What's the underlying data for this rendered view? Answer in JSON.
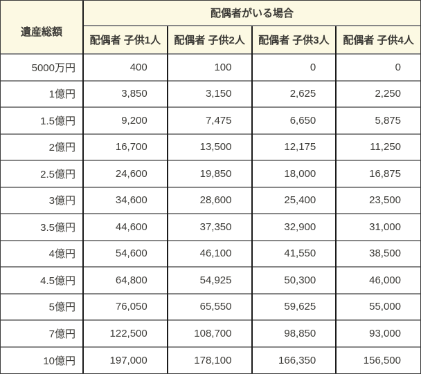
{
  "chart_data": {
    "type": "table",
    "corner_header": "遺産総額",
    "group_header": "配偶者がいる場合",
    "column_headers": [
      "配偶者 子供1人",
      "配偶者 子供2人",
      "配偶者 子供3人",
      "配偶者 子供4人"
    ],
    "rows": [
      {
        "label": "5000万円",
        "values": [
          "400",
          "100",
          "0",
          "0"
        ]
      },
      {
        "label": "1億円",
        "values": [
          "3,850",
          "3,150",
          "2,625",
          "2,250"
        ]
      },
      {
        "label": "1.5億円",
        "values": [
          "9,200",
          "7,475",
          "6,650",
          "5,875"
        ]
      },
      {
        "label": "2億円",
        "values": [
          "16,700",
          "13,500",
          "12,175",
          "11,250"
        ]
      },
      {
        "label": "2.5億円",
        "values": [
          "24,600",
          "19,850",
          "18,000",
          "16,875"
        ]
      },
      {
        "label": "3億円",
        "values": [
          "34,600",
          "28,600",
          "25,400",
          "23,500"
        ]
      },
      {
        "label": "3.5億円",
        "values": [
          "44,600",
          "37,350",
          "32,900",
          "31,000"
        ]
      },
      {
        "label": "4億円",
        "values": [
          "54,600",
          "46,100",
          "41,550",
          "38,500"
        ]
      },
      {
        "label": "4.5億円",
        "values": [
          "64,800",
          "54,925",
          "50,300",
          "46,000"
        ]
      },
      {
        "label": "5億円",
        "values": [
          "76,050",
          "65,550",
          "59,625",
          "55,000"
        ]
      },
      {
        "label": "7億円",
        "values": [
          "122,500",
          "108,700",
          "98,850",
          "93,000"
        ]
      },
      {
        "label": "10億円",
        "values": [
          "197,000",
          "178,100",
          "166,350",
          "156,500"
        ]
      }
    ]
  },
  "colors": {
    "header_bg": "#fcf9e3",
    "body_bg": "#ffffff",
    "vertical_border": "#1b1b1b",
    "horizontal_border": "#878787",
    "outer_border": "#3c3c3c",
    "text": "#3b3a36"
  }
}
